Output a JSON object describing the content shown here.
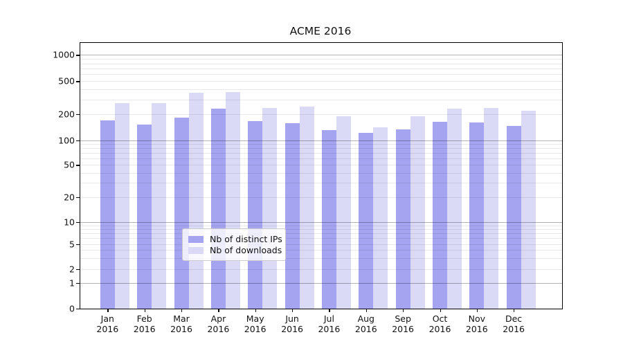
{
  "title": "ACME 2016",
  "legend": {
    "items": [
      {
        "label": "Nb of distinct IPs",
        "series": "ips"
      },
      {
        "label": "Nb of downloads",
        "series": "downloads"
      }
    ]
  },
  "colors": {
    "ips": "#a4a4f1",
    "downloads": "#dadaf6",
    "grid_major": "rgba(0,0,0,0.30)",
    "grid_minor": "rgba(0,0,0,0.085)",
    "axis": "#000000",
    "text": "#111111"
  },
  "y_axis": {
    "ticks": [
      0,
      1,
      2,
      5,
      10,
      20,
      50,
      100,
      200,
      500,
      1000
    ]
  },
  "x_axis": {
    "months": [
      "Jan",
      "Feb",
      "Mar",
      "Apr",
      "May",
      "Jun",
      "Jul",
      "Aug",
      "Sep",
      "Oct",
      "Nov",
      "Dec"
    ],
    "year_label": "2016"
  },
  "chart_data": {
    "type": "bar",
    "title": "ACME 2016",
    "categories": [
      "Jan 2016",
      "Feb 2016",
      "Mar 2016",
      "Apr 2016",
      "May 2016",
      "Jun 2016",
      "Jul 2016",
      "Aug 2016",
      "Sep 2016",
      "Oct 2016",
      "Nov 2016",
      "Dec 2016"
    ],
    "series": [
      {
        "name": "Nb of distinct IPs",
        "values": [
          170,
          152,
          181,
          232,
          166,
          156,
          131,
          121,
          132,
          163,
          159,
          145
        ]
      },
      {
        "name": "Nb of downloads",
        "values": [
          269,
          269,
          364,
          372,
          236,
          248,
          187,
          141,
          187,
          230,
          236,
          219
        ]
      }
    ],
    "yscale": "symlog",
    "y_ticks": [
      0,
      1,
      2,
      5,
      10,
      20,
      50,
      100,
      200,
      500,
      1000
    ],
    "ylim": [
      0,
      1100
    ],
    "grid": true,
    "legend_position": "lower center"
  }
}
